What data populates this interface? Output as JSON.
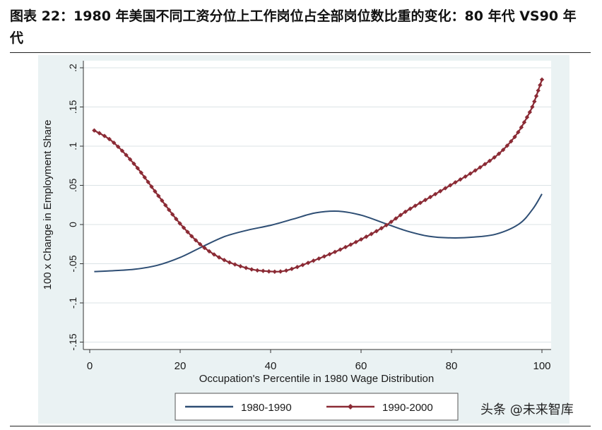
{
  "header": {
    "title": "图表 22：1980 年美国不同工资分位上工作岗位占全部岗位数比重的变化：80 年代 VS90 年代"
  },
  "watermark": "头条 @未来智库",
  "colors": {
    "series1": "#2e4e74",
    "series2": "#8b2b35",
    "grid": "#dbe3e6",
    "panel": "#eaf2f3",
    "plot": "#ffffff"
  },
  "chart_data": {
    "type": "line",
    "title": "",
    "xlabel": "Occupation's Percentile in 1980 Wage Distribution",
    "ylabel": "100 x Change in Employment Share",
    "xlim": [
      0,
      100
    ],
    "ylim": [
      -0.15,
      0.2
    ],
    "xticks": [
      0,
      20,
      40,
      60,
      80,
      100
    ],
    "xtick_labels": [
      "0",
      "20",
      "40",
      "60",
      "80",
      "100"
    ],
    "yticks": [
      -0.15,
      -0.1,
      -0.05,
      0,
      0.05,
      0.1,
      0.15,
      0.2
    ],
    "ytick_labels": [
      "-.15",
      "-.1",
      "-.05",
      "0",
      ".05",
      ".1",
      ".15",
      ".2"
    ],
    "grid": true,
    "legend_position": "bottom",
    "series": [
      {
        "name": "1980-1990",
        "marker": "none",
        "x": [
          1,
          5,
          10,
          15,
          20,
          25,
          30,
          35,
          40,
          45,
          50,
          55,
          60,
          65,
          70,
          75,
          80,
          85,
          90,
          95,
          98,
          100
        ],
        "values": [
          -0.06,
          -0.059,
          -0.057,
          -0.052,
          -0.042,
          -0.028,
          -0.015,
          -0.007,
          -0.001,
          0.007,
          0.015,
          0.017,
          0.012,
          0.002,
          -0.008,
          -0.015,
          -0.017,
          -0.016,
          -0.012,
          0.001,
          0.02,
          0.039
        ]
      },
      {
        "name": "1990-2000",
        "marker": "diamond",
        "x": [
          1,
          5,
          10,
          15,
          20,
          25,
          30,
          35,
          38,
          42,
          45,
          50,
          55,
          60,
          65,
          70,
          75,
          80,
          85,
          90,
          93,
          95,
          97,
          98,
          99,
          100
        ],
        "values": [
          0.12,
          0.106,
          0.076,
          0.038,
          0.001,
          -0.028,
          -0.046,
          -0.056,
          -0.059,
          -0.06,
          -0.056,
          -0.045,
          -0.033,
          -0.019,
          -0.003,
          0.017,
          0.034,
          0.051,
          0.068,
          0.088,
          0.105,
          0.12,
          0.14,
          0.152,
          0.168,
          0.185
        ]
      }
    ]
  }
}
